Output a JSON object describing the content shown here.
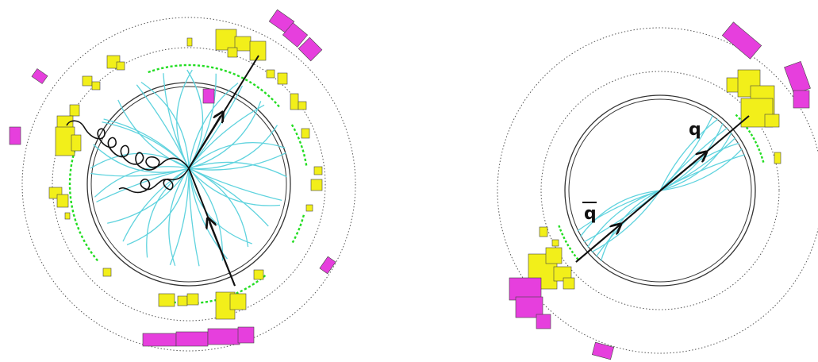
{
  "colors": {
    "track": "#5fd3de",
    "ecal": "#f2ef1a",
    "hcal": "#e63fdd",
    "hits": "#22dd22",
    "parton": "#111111",
    "detector_line": "#555555"
  },
  "left_event": {
    "track_count": 36,
    "gluon_count": 2,
    "parton_count": 2
  },
  "right_event": {
    "track_count": 16,
    "labels": {
      "quark": "q",
      "antiquark": "q"
    },
    "antiquark_bar": true
  }
}
